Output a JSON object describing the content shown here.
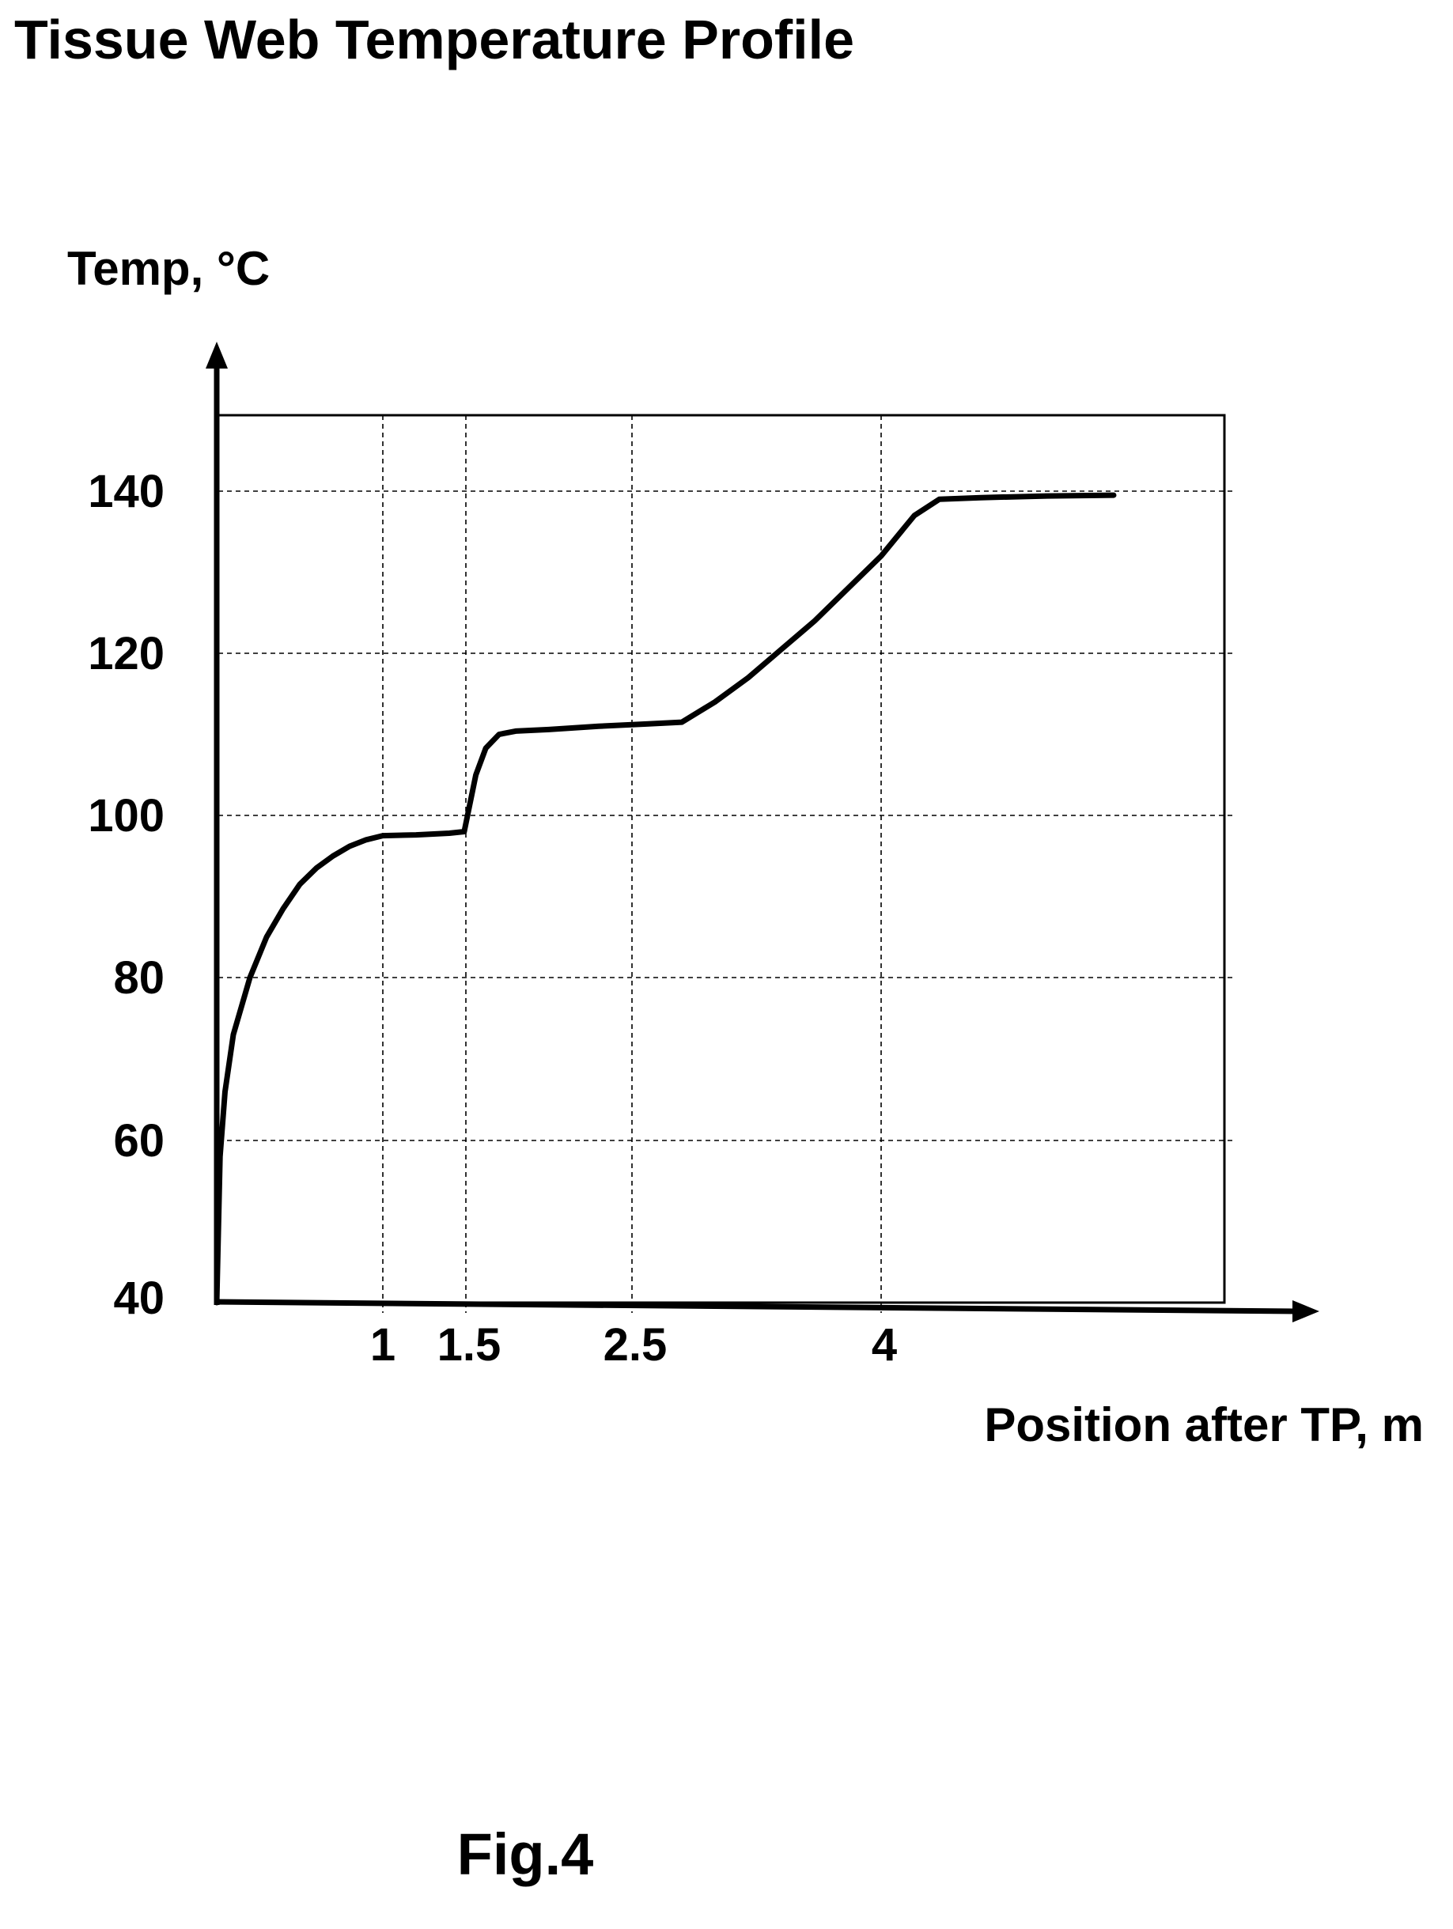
{
  "page_title": "Tissue Web Temperature Profile",
  "figure_label": "Fig.4",
  "chart_data": {
    "type": "line",
    "ylabel": "Temp, °C",
    "xlabel": "Position after TP, m",
    "ylim": [
      40,
      150
    ],
    "yticks": [
      40,
      60,
      80,
      100,
      120,
      140
    ],
    "ytick_labels": [
      "40",
      "60",
      "80",
      "100",
      "120",
      "140"
    ],
    "xticks": [
      1,
      1.5,
      2.5,
      4
    ],
    "xtick_labels": [
      "1",
      "1.5",
      "2.5",
      "4"
    ],
    "grid": true,
    "series": [
      {
        "x": [
          0,
          0.02,
          0.05,
          0.1,
          0.2,
          0.3,
          0.4,
          0.5,
          0.6,
          0.7,
          0.8,
          0.9,
          1.0,
          1.2,
          1.4,
          1.49,
          1.52,
          1.56,
          1.62,
          1.7,
          1.8,
          2.0,
          2.3,
          2.6,
          2.8,
          3.0,
          3.2,
          3.4,
          3.6,
          3.8,
          4.0,
          4.2,
          4.35,
          4.6,
          5.0,
          5.4
        ],
        "y": [
          40,
          58,
          66,
          73,
          80,
          85,
          88.5,
          91.5,
          93.5,
          95,
          96.2,
          97,
          97.5,
          97.6,
          97.8,
          98,
          101,
          105,
          108.3,
          110,
          110.4,
          110.6,
          111,
          111.3,
          111.5,
          114,
          117,
          120.5,
          124,
          128,
          132,
          137,
          139,
          139.2,
          139.4,
          139.5
        ]
      }
    ]
  }
}
